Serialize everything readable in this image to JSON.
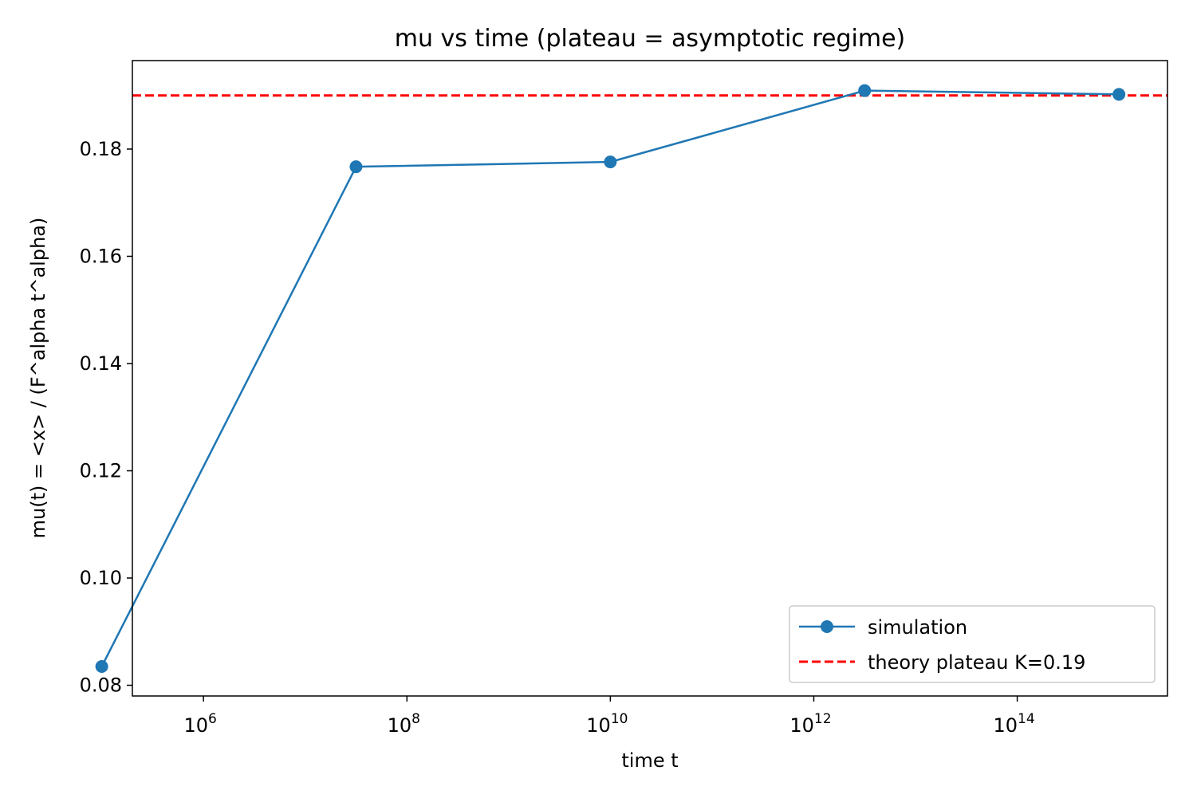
{
  "chart_data": {
    "type": "line",
    "title": "mu vs time (plateau = asymptotic regime)",
    "xlabel": "time t",
    "ylabel": "mu(t) = <x> / (F^alpha t^alpha)",
    "x_scale": "log",
    "xlim": [
      200000,
      3000000000000000
    ],
    "ylim": [
      0.078,
      0.1965
    ],
    "x_ticks": [
      {
        "value": 1000000,
        "base": "10",
        "exp": "6"
      },
      {
        "value": 100000000,
        "base": "10",
        "exp": "8"
      },
      {
        "value": 10000000000,
        "base": "10",
        "exp": "10"
      },
      {
        "value": 1000000000000,
        "base": "10",
        "exp": "12"
      },
      {
        "value": 100000000000000,
        "base": "10",
        "exp": "14"
      }
    ],
    "y_ticks": [
      {
        "value": 0.08,
        "label": "0.08"
      },
      {
        "value": 0.1,
        "label": "0.10"
      },
      {
        "value": 0.12,
        "label": "0.12"
      },
      {
        "value": 0.14,
        "label": "0.14"
      },
      {
        "value": 0.16,
        "label": "0.16"
      },
      {
        "value": 0.18,
        "label": "0.18"
      }
    ],
    "grid": false,
    "legend_position": "lower-right",
    "series": [
      {
        "name": "simulation",
        "color": "#1f77b4",
        "marker": "circle",
        "x": [
          100000,
          31600000,
          10000000000,
          3160000000000,
          1000000000000000
        ],
        "y": [
          0.0835,
          0.1767,
          0.1776,
          0.1909,
          0.1902
        ]
      }
    ],
    "reference_lines": [
      {
        "name": "theory plateau K=0.19",
        "type": "horizontal",
        "y": 0.19,
        "color": "#ff0000",
        "style": "dashed"
      }
    ]
  }
}
